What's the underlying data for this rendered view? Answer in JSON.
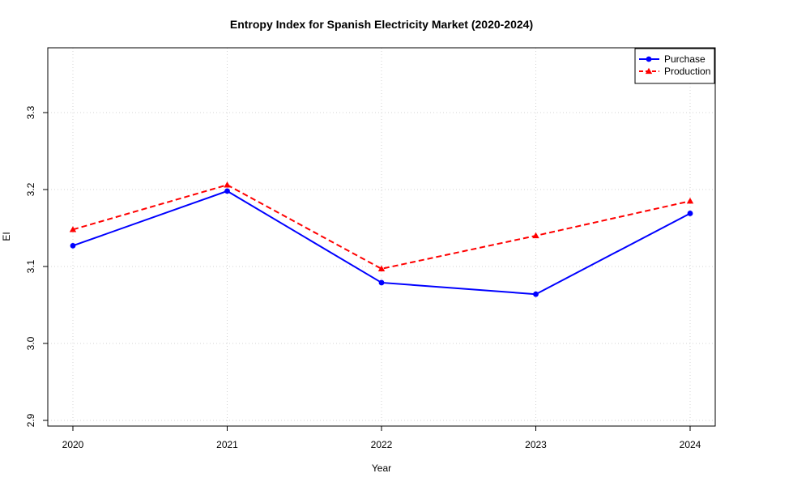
{
  "chart_data": {
    "type": "line",
    "title": "Entropy Index for Spanish Electricity Market (2020-2024)",
    "xlabel": "Year",
    "ylabel": "EI",
    "x": [
      "2020",
      "2021",
      "2022",
      "2023",
      "2024"
    ],
    "yticks": [
      "2.9",
      "3.0",
      "3.1",
      "3.2",
      "3.3"
    ],
    "ylim": [
      2.9,
      3.38
    ],
    "grid": true,
    "legend_position": "top-right",
    "series": [
      {
        "name": "Purchase",
        "values": [
          3.127,
          3.198,
          3.079,
          3.064,
          3.169
        ],
        "color": "#0000ff",
        "line_style": "solid",
        "marker": "circle"
      },
      {
        "name": "Production",
        "values": [
          3.148,
          3.206,
          3.097,
          3.14,
          3.185
        ],
        "color": "#ff0000",
        "line_style": "dashed",
        "marker": "triangle"
      }
    ]
  }
}
